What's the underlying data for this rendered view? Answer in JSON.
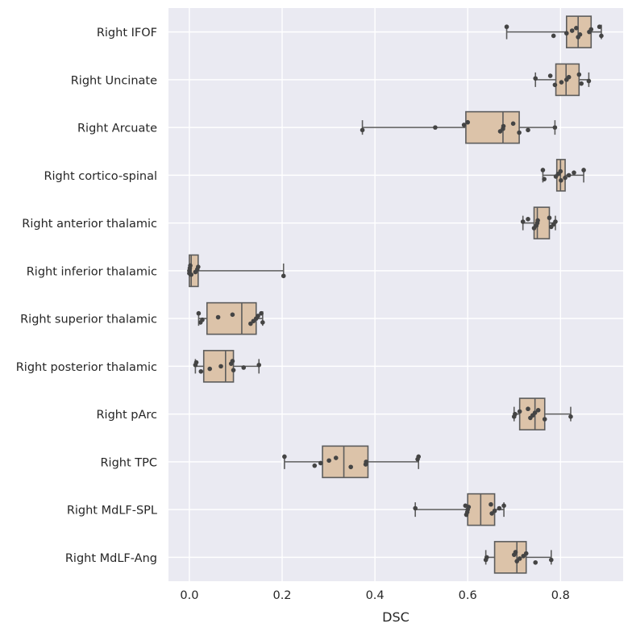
{
  "chart_data": {
    "type": "box",
    "orientation": "horizontal",
    "xlabel": "DSC",
    "ylabel": "",
    "xlim": [
      -0.045,
      0.935
    ],
    "xticks": [
      0.0,
      0.2,
      0.4,
      0.6,
      0.8
    ],
    "xtick_labels": [
      "0.0",
      "0.2",
      "0.4",
      "0.6",
      "0.8"
    ],
    "grid": true,
    "style": {
      "background": "#eaeaf2",
      "grid_color": "#ffffff",
      "box_fill": "#dcc3a9",
      "line_color": "#5c5c5c",
      "point_color": "#444444"
    },
    "categories": [
      "Right IFOF",
      "Right Uncinate",
      "Right Arcuate",
      "Right cortico-spinal",
      "Right anterior thalamic",
      "Right inferior thalamic",
      "Right superior thalamic",
      "Right posterior thalamic",
      "Right pArc",
      "Right TPC",
      "Right MdLF-SPL",
      "Right MdLF-Ang"
    ],
    "boxes": [
      {
        "whislo": 0.684,
        "q1": 0.813,
        "med": 0.838,
        "q3": 0.866,
        "whishi": 0.888
      },
      {
        "whislo": 0.746,
        "q1": 0.79,
        "med": 0.812,
        "q3": 0.84,
        "whishi": 0.861
      },
      {
        "whislo": 0.373,
        "q1": 0.596,
        "med": 0.676,
        "q3": 0.711,
        "whishi": 0.788
      },
      {
        "whislo": 0.762,
        "q1": 0.792,
        "med": 0.8,
        "q3": 0.81,
        "whishi": 0.85
      },
      {
        "whislo": 0.719,
        "q1": 0.743,
        "med": 0.75,
        "q3": 0.776,
        "whishi": 0.789
      },
      {
        "whislo": 0.0,
        "q1": 0.0,
        "med": 0.004,
        "q3": 0.019,
        "whishi": 0.203
      },
      {
        "whislo": 0.02,
        "q1": 0.038,
        "med": 0.113,
        "q3": 0.144,
        "whishi": 0.158
      },
      {
        "whislo": 0.013,
        "q1": 0.031,
        "med": 0.078,
        "q3": 0.095,
        "whishi": 0.15
      },
      {
        "whislo": 0.7,
        "q1": 0.712,
        "med": 0.745,
        "q3": 0.766,
        "whishi": 0.822
      },
      {
        "whislo": 0.205,
        "q1": 0.287,
        "med": 0.333,
        "q3": 0.385,
        "whishi": 0.494
      },
      {
        "whislo": 0.487,
        "q1": 0.6,
        "med": 0.628,
        "q3": 0.658,
        "whishi": 0.678
      },
      {
        "whislo": 0.639,
        "q1": 0.658,
        "med": 0.706,
        "q3": 0.726,
        "whishi": 0.78
      }
    ],
    "points": [
      [
        0.684,
        0.785,
        0.813,
        0.825,
        0.834,
        0.838,
        0.842,
        0.862,
        0.866,
        0.884,
        0.888
      ],
      [
        0.746,
        0.778,
        0.788,
        0.802,
        0.813,
        0.818,
        0.84,
        0.845,
        0.861
      ],
      [
        0.373,
        0.53,
        0.592,
        0.6,
        0.67,
        0.676,
        0.677,
        0.698,
        0.711,
        0.73,
        0.788
      ],
      [
        0.762,
        0.765,
        0.79,
        0.795,
        0.8,
        0.801,
        0.81,
        0.818,
        0.829,
        0.85
      ],
      [
        0.719,
        0.73,
        0.743,
        0.748,
        0.75,
        0.751,
        0.776,
        0.78,
        0.785,
        0.789
      ],
      [
        0.0,
        0.0,
        0.001,
        0.002,
        0.004,
        0.013,
        0.017,
        0.019,
        0.203
      ],
      [
        0.02,
        0.024,
        0.028,
        0.062,
        0.093,
        0.132,
        0.138,
        0.144,
        0.148,
        0.155,
        0.158
      ],
      [
        0.013,
        0.015,
        0.025,
        0.044,
        0.068,
        0.09,
        0.093,
        0.095,
        0.117,
        0.15
      ],
      [
        0.7,
        0.702,
        0.712,
        0.73,
        0.735,
        0.74,
        0.745,
        0.752,
        0.766,
        0.822
      ],
      [
        0.205,
        0.27,
        0.283,
        0.301,
        0.316,
        0.348,
        0.38,
        0.381,
        0.492,
        0.494
      ],
      [
        0.487,
        0.595,
        0.597,
        0.599,
        0.6,
        0.602,
        0.65,
        0.652,
        0.658,
        0.668,
        0.678
      ],
      [
        0.639,
        0.641,
        0.7,
        0.703,
        0.706,
        0.712,
        0.72,
        0.726,
        0.746,
        0.78
      ]
    ]
  }
}
